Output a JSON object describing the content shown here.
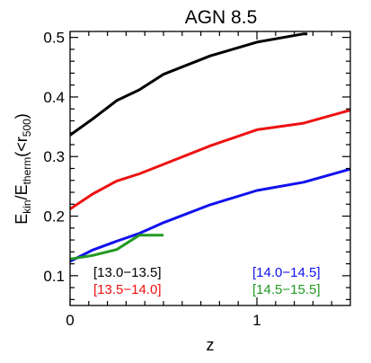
{
  "chart_data": {
    "type": "line",
    "title": "AGN 8.5",
    "xlabel": "z",
    "ylabel": {
      "main": "E",
      "sub1": "kin",
      "mid": "/E",
      "sub2": "therm",
      "post": "(<r",
      "sub3": "500",
      "close": ")"
    },
    "xlim": [
      0,
      1.5
    ],
    "ylim": [
      0.05,
      0.51
    ],
    "xticks": [
      0,
      1
    ],
    "yticks": [
      0.1,
      0.2,
      0.3,
      0.4,
      0.5
    ],
    "xtick_labels": [
      "0",
      "1"
    ],
    "ytick_labels": [
      "0.1",
      "0.2",
      "0.3",
      "0.4",
      "0.5"
    ],
    "grid": false,
    "legend_placement": "bottom, inside plot",
    "series": [
      {
        "name": "[13.0−13.5]",
        "color": "#000000",
        "x": [
          0.0,
          0.12,
          0.25,
          0.37,
          0.5,
          0.75,
          1.0,
          1.25,
          1.27
        ],
        "y": [
          0.336,
          0.363,
          0.394,
          0.412,
          0.438,
          0.469,
          0.492,
          0.506,
          0.506
        ]
      },
      {
        "name": "[13.5−14.0]",
        "color": "#ee1111",
        "x": [
          0.0,
          0.12,
          0.25,
          0.37,
          0.5,
          0.75,
          1.0,
          1.25,
          1.5
        ],
        "y": [
          0.212,
          0.237,
          0.259,
          0.271,
          0.287,
          0.318,
          0.345,
          0.356,
          0.378
        ]
      },
      {
        "name": "[14.0−14.5]",
        "color": "#1111ee",
        "x": [
          0.0,
          0.12,
          0.25,
          0.37,
          0.5,
          0.75,
          1.0,
          1.25,
          1.5
        ],
        "y": [
          0.124,
          0.143,
          0.158,
          0.171,
          0.189,
          0.219,
          0.243,
          0.257,
          0.279
        ]
      },
      {
        "name": "[14.5−15.5]",
        "color": "#229922",
        "x": [
          0.0,
          0.12,
          0.25,
          0.37,
          0.5
        ],
        "y": [
          0.128,
          0.134,
          0.144,
          0.168,
          0.168
        ]
      }
    ]
  }
}
